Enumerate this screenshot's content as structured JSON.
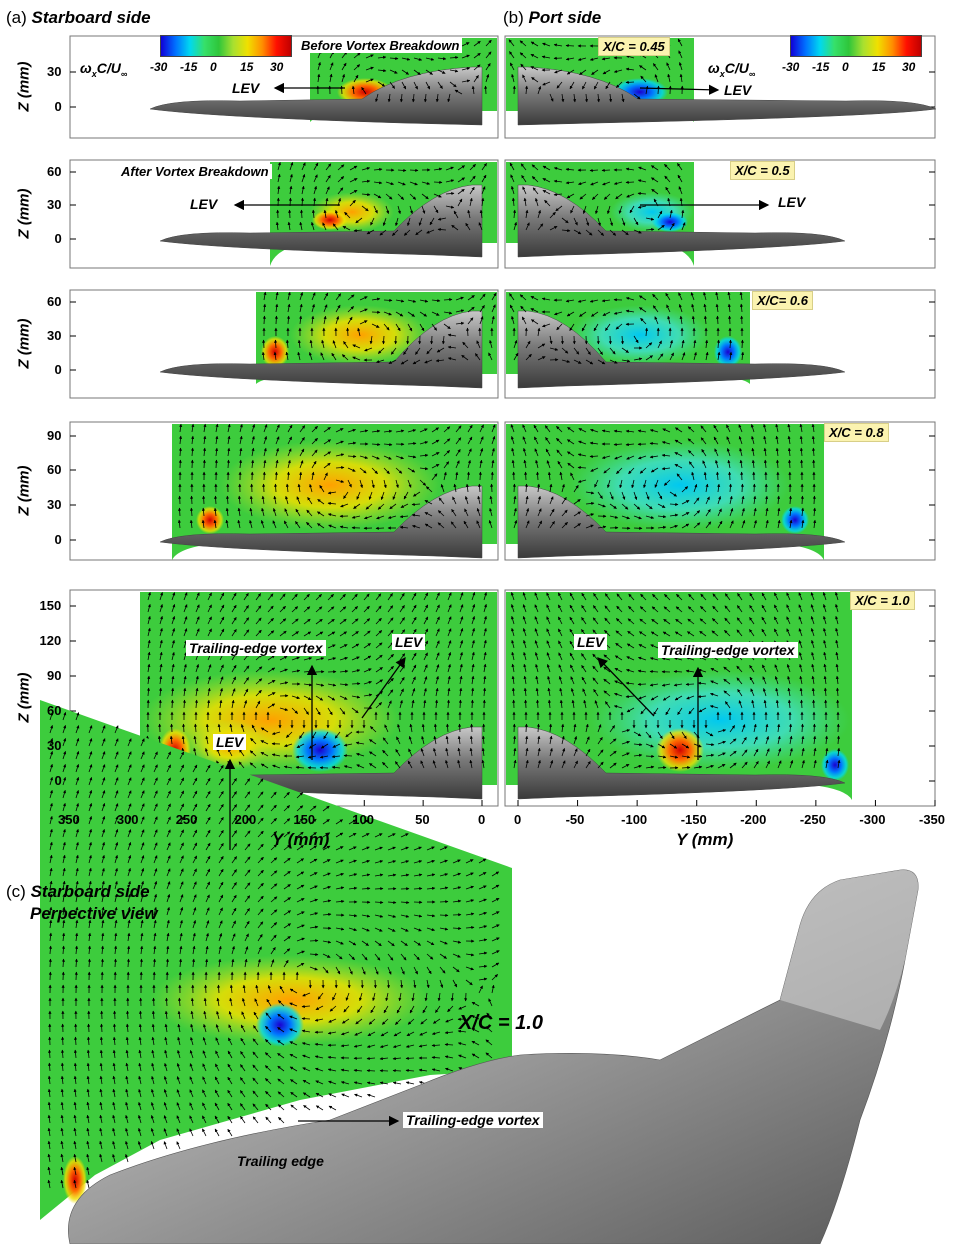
{
  "panel_a": {
    "tag": "(a)",
    "title": "Starboard side"
  },
  "panel_b": {
    "tag": "(b)",
    "title": "Port side"
  },
  "panel_c": {
    "tag": "(c)",
    "title_line1": "Starboard side",
    "title_line2": "Perpective view"
  },
  "colorbar": {
    "label_main": "ω",
    "label_sub": "x",
    "label_rest": "C/U",
    "label_inf": "∞",
    "ticks": [
      "-30",
      "-15",
      "0",
      "15",
      "30"
    ]
  },
  "notes": {
    "before_breakdown": "Before Vortex Breakdown",
    "after_breakdown": "After Vortex Breakdown"
  },
  "stations": [
    {
      "xc": "X/C = 0.45",
      "z_ticks": [
        "30",
        "0"
      ]
    },
    {
      "xc": "X/C = 0.5",
      "z_ticks": [
        "60",
        "30",
        "0"
      ]
    },
    {
      "xc": "X/C= 0.6",
      "z_ticks": [
        "60",
        "30",
        "0"
      ]
    },
    {
      "xc": "X/C = 0.8",
      "z_ticks": [
        "90",
        "60",
        "30",
        "0"
      ]
    },
    {
      "xc": "X/C = 1.0",
      "z_ticks": [
        "150",
        "120",
        "90",
        "60",
        "30",
        "0"
      ]
    }
  ],
  "z_axis_title": "Z (mm)",
  "y_axis_title": "Y (mm)",
  "y_ticks_starboard": [
    "350",
    "300",
    "250",
    "200",
    "150",
    "100",
    "50",
    "0"
  ],
  "y_ticks_port": [
    "0",
    "-50",
    "-100",
    "-150",
    "-200",
    "-250",
    "-300",
    "-350"
  ],
  "labels": {
    "lev": "LEV",
    "trailing_edge_vortex": "Trailing-edge vortex",
    "trailing_edge": "Trailing edge",
    "xc_perspective": "X/C = 1.0"
  },
  "colors": {
    "field_green": "#3dcc3d",
    "body_gray": "#8a8a8a",
    "badge": "#fbf3b0"
  }
}
